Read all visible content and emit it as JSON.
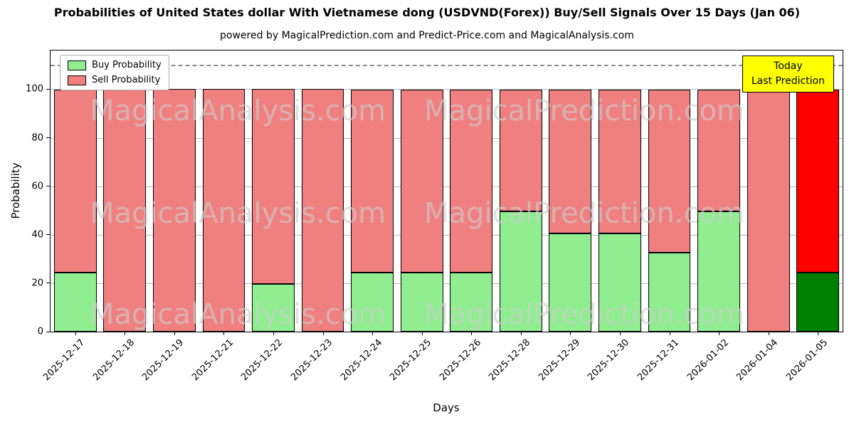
{
  "title": "Probabilities of United States dollar With Vietnamese dong (USDVND(Forex)) Buy/Sell Signals Over 15 Days (Jan 06)",
  "subtitle": "powered by MagicalPrediction.com and Predict-Price.com and MagicalAnalysis.com",
  "annotation": {
    "line1": "Today",
    "line2": "Last Prediction",
    "bg_color": "#ffff00"
  },
  "watermark": {
    "left": "MagicalAnalysis.com",
    "right": "MagicalPrediction.com"
  },
  "chart_data": {
    "type": "bar",
    "stacked": true,
    "title": "Probabilities of United States dollar With Vietnamese dong (USDVND(Forex)) Buy/Sell Signals Over 15 Days (Jan 06)",
    "xlabel": "Days",
    "ylabel": "Probability",
    "categories": [
      "2025-12-17",
      "2025-12-18",
      "2025-12-19",
      "2025-12-21",
      "2025-12-22",
      "2025-12-23",
      "2025-12-24",
      "2025-12-25",
      "2025-12-26",
      "2025-12-28",
      "2025-12-29",
      "2025-12-30",
      "2025-12-31",
      "2026-01-02",
      "2026-01-04",
      "2026-01-05"
    ],
    "series": [
      {
        "name": "Buy Probability",
        "color": "#90EE90",
        "values": [
          24.5,
          0,
          0,
          0,
          19.8,
          0,
          24.5,
          24.5,
          24.5,
          49.5,
          40.4,
          40.4,
          32.5,
          49.5,
          0,
          24.5
        ]
      },
      {
        "name": "Sell Probability",
        "color": "#F08080",
        "values": [
          75.5,
          100,
          100,
          100,
          80.2,
          100,
          75.5,
          75.5,
          75.5,
          50.5,
          59.6,
          59.6,
          67.5,
          50.5,
          100,
          75.5
        ]
      }
    ],
    "today_index": 15,
    "today_colors": {
      "buy": "#008000",
      "sell": "#FF0000"
    },
    "yticks": [
      0,
      20,
      40,
      60,
      80,
      100
    ],
    "ylim": [
      0,
      116
    ],
    "dashed_line_y": 110,
    "grid": true,
    "legend_position": "upper left"
  }
}
